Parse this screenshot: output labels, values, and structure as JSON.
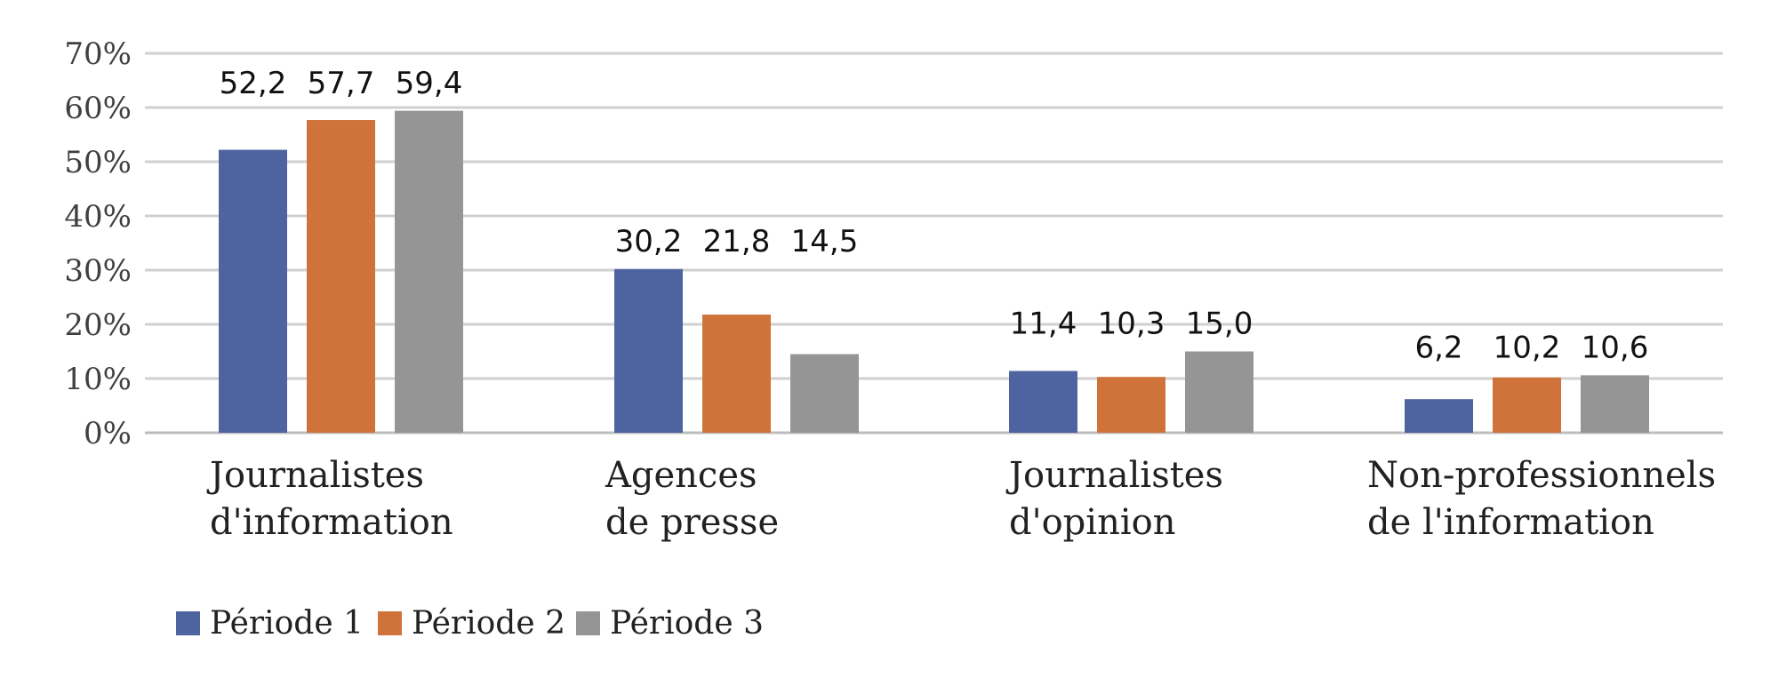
{
  "chart_data": {
    "type": "bar",
    "title": "",
    "xlabel": "",
    "ylabel": "",
    "ylim": [
      0,
      70
    ],
    "y_tick_values": [
      0,
      10,
      20,
      30,
      40,
      50,
      60,
      70
    ],
    "y_tick_labels": [
      "0%",
      "10%",
      "20%",
      "30%",
      "40%",
      "50%",
      "60%",
      "70%"
    ],
    "grid": true,
    "legend_position": "bottom-left",
    "categories": [
      [
        "Journalistes",
        "d'information"
      ],
      [
        "Agences",
        "de presse"
      ],
      [
        "Journalistes",
        "d'opinion"
      ],
      [
        "Non-professionnels",
        "de l'information"
      ]
    ],
    "series": [
      {
        "name": "Période 1",
        "color": "#4e64a0",
        "values": [
          52.2,
          30.2,
          11.4,
          6.2
        ],
        "labels": [
          "52,2",
          "30,2",
          "11,4",
          "6,2"
        ]
      },
      {
        "name": "Période 2",
        "color": "#d0733b",
        "values": [
          57.7,
          21.8,
          10.3,
          10.2
        ],
        "labels": [
          "57,7",
          "21,8",
          "10,3",
          "10,2"
        ]
      },
      {
        "name": "Période 3",
        "color": "#959595",
        "values": [
          59.4,
          14.5,
          15.0,
          10.6
        ],
        "labels": [
          "59,4",
          "14,5",
          "15,0",
          "10,6"
        ]
      }
    ]
  }
}
